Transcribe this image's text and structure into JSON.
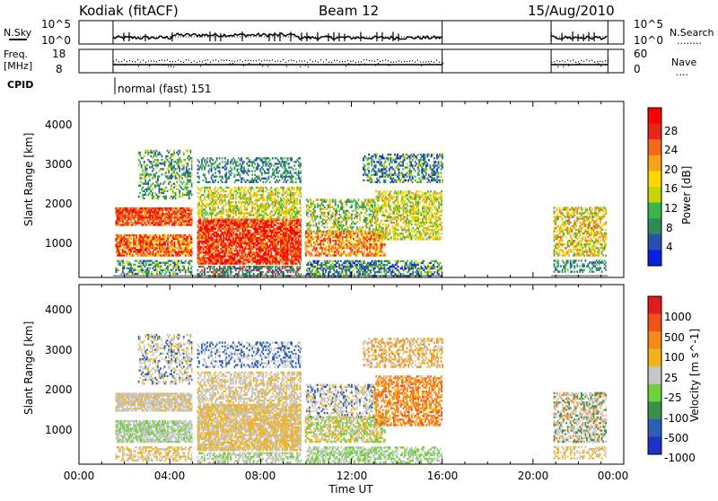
{
  "header": {
    "radar": "Kodiak (fitACF)",
    "beam": "Beam 12",
    "date": "15/Aug/2010"
  },
  "nsky_panel": {
    "label": "N.Sky",
    "right_label": "N.Search",
    "right_legend": "........",
    "left_ticks": [
      "10^5",
      "10^0"
    ],
    "right_ticks": [
      "10^5",
      "10^0"
    ]
  },
  "freq_panel": {
    "label_line1": "Freq.",
    "label_line2": "[MHz]",
    "left_ticks": [
      "18",
      "8"
    ],
    "right_ticks": [
      "60",
      "0"
    ],
    "right_label": "Nave",
    "right_legend": "....",
    "cpid_label": "CPID",
    "cpid_text": "normal (fast) 151"
  },
  "power_panel": {
    "ylabel": "Slant Range [km]",
    "yticks": [
      "1000",
      "2000",
      "3000",
      "4000"
    ],
    "colorbar_title": "Power [dB]",
    "colorbar_ticks": [
      "4",
      "8",
      "12",
      "16",
      "20",
      "24",
      "28"
    ],
    "colors": [
      "#0b1fe0",
      "#2a4fb0",
      "#2e8b57",
      "#39b54a",
      "#c8d400",
      "#ffd700",
      "#f7a21b",
      "#f26a1b",
      "#e8261c",
      "#ff0000"
    ]
  },
  "velocity_panel": {
    "ylabel": "Slant Range [km]",
    "yticks": [
      "1000",
      "2000",
      "3000",
      "4000"
    ],
    "colorbar_title": "Velocity [m s^-1]",
    "colorbar_ticks": [
      "1000",
      "500",
      "100",
      "25",
      "-25",
      "-100",
      "-500",
      "-1000"
    ],
    "colors": [
      "#1d33c8",
      "#2a5fb8",
      "#3a8f4a",
      "#6fd13a",
      "#c6c6c6",
      "#f2b318",
      "#f58a1a",
      "#f0501c",
      "#e01c1c"
    ]
  },
  "xaxis": {
    "label": "Time UT",
    "ticks": [
      "00:00",
      "04:00",
      "08:00",
      "12:00",
      "16:00",
      "20:00",
      "00:00"
    ]
  },
  "chart_data": {
    "type": "heatmap",
    "x_range_hours": [
      0,
      24
    ],
    "y_range_km": [
      180,
      4500
    ],
    "data_segments_hours": [
      [
        1.5,
        16.0
      ],
      [
        20.8,
        23.3
      ]
    ],
    "power_db_range": [
      0,
      30
    ],
    "velocity_range": [
      -1000,
      1000
    ],
    "grid": false
  }
}
